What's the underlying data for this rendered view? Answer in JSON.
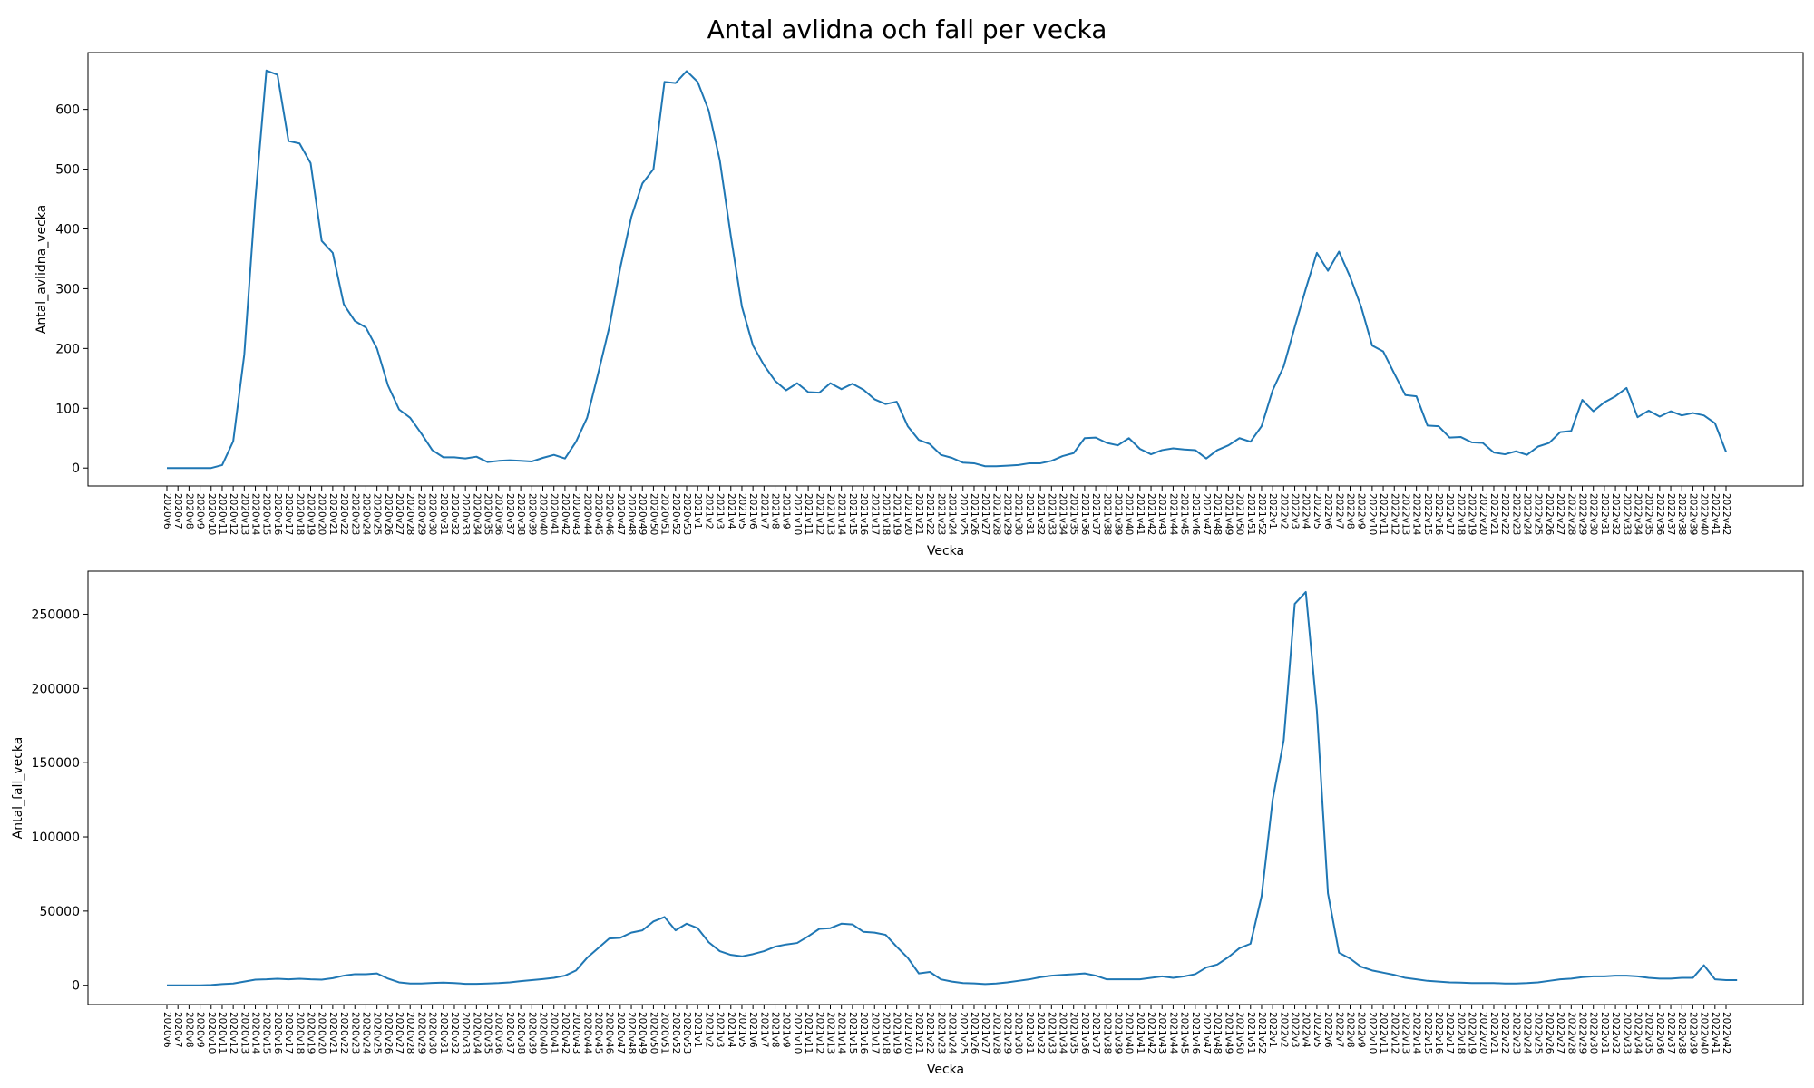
{
  "title": "Antal avlidna och fall per vecka",
  "chart_data": [
    {
      "type": "line",
      "title": "",
      "xlabel": "Vecka",
      "ylabel": "Antal_avlidna_vecka",
      "ylim": [
        -30,
        695
      ],
      "yticks": [
        0,
        100,
        200,
        300,
        400,
        500,
        600
      ],
      "grid": false,
      "color": "#1f77b4",
      "values": [
        0,
        0,
        0,
        0,
        0,
        5,
        45,
        190,
        450,
        665,
        658,
        547,
        543,
        510,
        380,
        360,
        274,
        246,
        235,
        200,
        138,
        98,
        84,
        58,
        30,
        18,
        18,
        16,
        19,
        10,
        12,
        13,
        12,
        11,
        17,
        22,
        16,
        44,
        84,
        158,
        235,
        335,
        420,
        476,
        500,
        646,
        644,
        664,
        646,
        598,
        515,
        388,
        270,
        205,
        172,
        146,
        130,
        142,
        127,
        126,
        142,
        132,
        141,
        131,
        115,
        107,
        111,
        70,
        47,
        40,
        22,
        17,
        9,
        8,
        3,
        3,
        4,
        5,
        8,
        8,
        12,
        20,
        25,
        50,
        51,
        42,
        38,
        50,
        32,
        23,
        30,
        33,
        31,
        30,
        16,
        30,
        38,
        50,
        44,
        70,
        130,
        170,
        236,
        300,
        360,
        330,
        362,
        320,
        270,
        205,
        195,
        158,
        122,
        120,
        71,
        70,
        51,
        52,
        43,
        42,
        26,
        23,
        28,
        22,
        36,
        42,
        60,
        62,
        114,
        95,
        110,
        120,
        134,
        85,
        96,
        86,
        95,
        88,
        92,
        88,
        75,
        27
      ],
      "categories": [
        "2020v6",
        "2020v7",
        "2020v8",
        "2020v9",
        "2020v10",
        "2020v11",
        "2020v12",
        "2020v13",
        "2020v14",
        "2020v15",
        "2020v16",
        "2020v17",
        "2020v18",
        "2020v19",
        "2020v20",
        "2020v21",
        "2020v22",
        "2020v23",
        "2020v24",
        "2020v25",
        "2020v26",
        "2020v27",
        "2020v28",
        "2020v29",
        "2020v30",
        "2020v31",
        "2020v32",
        "2020v33",
        "2020v34",
        "2020v35",
        "2020v36",
        "2020v37",
        "2020v38",
        "2020v39",
        "2020v40",
        "2020v41",
        "2020v42",
        "2020v43",
        "2020v44",
        "2020v45",
        "2020v46",
        "2020v47",
        "2020v48",
        "2020v49",
        "2020v50",
        "2020v51",
        "2020v52",
        "2020v53",
        "2021v1",
        "2021v2",
        "2021v3",
        "2021v4",
        "2021v5",
        "2021v6",
        "2021v7",
        "2021v8",
        "2021v9",
        "2021v10",
        "2021v11",
        "2021v12",
        "2021v13",
        "2021v14",
        "2021v15",
        "2021v16",
        "2021v17",
        "2021v18",
        "2021v19",
        "2021v20",
        "2021v21",
        "2021v22",
        "2021v23",
        "2021v24",
        "2021v25",
        "2021v26",
        "2021v27",
        "2021v28",
        "2021v29",
        "2021v30",
        "2021v31",
        "2021v32",
        "2021v33",
        "2021v34",
        "2021v35",
        "2021v36",
        "2021v37",
        "2021v38",
        "2021v39",
        "2021v40",
        "2021v41",
        "2021v42",
        "2021v43",
        "2021v44",
        "2021v45",
        "2021v46",
        "2021v47",
        "2021v48",
        "2021v49",
        "2021v50",
        "2021v51",
        "2021v52",
        "2022v1",
        "2022v2",
        "2022v3",
        "2022v4",
        "2022v5",
        "2022v6",
        "2022v7",
        "2022v8",
        "2022v9",
        "2022v10",
        "2022v11",
        "2022v12",
        "2022v13",
        "2022v14",
        "2022v15",
        "2022v16",
        "2022v17",
        "2022v18",
        "2022v19",
        "2022v20",
        "2022v21",
        "2022v22",
        "2022v23",
        "2022v24",
        "2022v25",
        "2022v26",
        "2022v27",
        "2022v28",
        "2022v29",
        "2022v30",
        "2022v31",
        "2022v32",
        "2022v33",
        "2022v34",
        "2022v35",
        "2022v36",
        "2022v37",
        "2022v38",
        "2022v39",
        "2022v40",
        "2022v41",
        "2022v42"
      ]
    },
    {
      "type": "line",
      "title": "",
      "xlabel": "Vecka",
      "ylabel": "Antal_fall_vecka",
      "ylim": [
        -13000,
        279000
      ],
      "yticks": [
        0,
        50000,
        100000,
        150000,
        200000,
        250000
      ],
      "grid": false,
      "color": "#1f77b4",
      "values": [
        0,
        0,
        0,
        0,
        200,
        800,
        1200,
        2500,
        3800,
        4000,
        4400,
        4000,
        4400,
        4000,
        3800,
        4800,
        6500,
        7500,
        7500,
        8000,
        4500,
        2000,
        1200,
        1200,
        1600,
        1800,
        1500,
        1000,
        1000,
        1200,
        1500,
        2000,
        2800,
        3500,
        4200,
        5000,
        6500,
        10000,
        18500,
        25000,
        31500,
        32000,
        35500,
        37000,
        43000,
        46000,
        37000,
        41500,
        38500,
        29000,
        23000,
        20500,
        19500,
        21000,
        23000,
        26000,
        27500,
        28500,
        33000,
        38000,
        38500,
        41500,
        41000,
        36000,
        35500,
        34000,
        26000,
        18500,
        8000,
        9000,
        4000,
        2500,
        1500,
        1300,
        800,
        1200,
        2000,
        3000,
        4000,
        5500,
        6500,
        7000,
        7500,
        8000,
        6500,
        4000,
        4000,
        4000,
        4000,
        5000,
        6000,
        5000,
        6000,
        7500,
        12000,
        14000,
        19000,
        25000,
        28000,
        60000,
        125000,
        165000,
        257000,
        265000,
        185000,
        62000,
        22000,
        18000,
        12500,
        10000,
        8500,
        7000,
        5000,
        4000,
        3000,
        2500,
        2000,
        1800,
        1500,
        1500,
        1500,
        1200,
        1200,
        1500,
        2000,
        3000,
        4000,
        4500,
        5500,
        6000,
        6000,
        6500,
        6500,
        6000,
        5000,
        4500,
        4500,
        5000,
        5000,
        13500,
        4000,
        3500,
        3500
      ]
    }
  ]
}
